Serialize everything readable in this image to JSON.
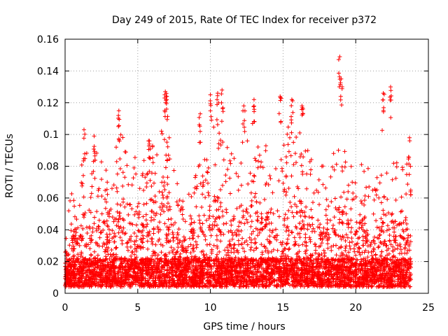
{
  "chart_data": {
    "type": "scatter",
    "title": "Day 249 of 2015, Rate Of TEC Index for receiver p372",
    "xlabel": "GPS time / hours",
    "ylabel": "ROTI / TECUs",
    "xlim": [
      0,
      25
    ],
    "ylim": [
      0,
      0.16
    ],
    "xticks": [
      "0",
      "5",
      "10",
      "15",
      "20",
      "25"
    ],
    "yticks": [
      "0",
      "0.02",
      "0.04",
      "0.06",
      "0.08",
      "0.1",
      "0.12",
      "0.14",
      "0.16"
    ],
    "grid": true,
    "marker": "plus",
    "series_color": "#ff0000",
    "x_coverage": [
      0.0,
      23.8
    ],
    "peaks": [
      {
        "x": 1.3,
        "y": 0.103
      },
      {
        "x": 2.0,
        "y": 0.099
      },
      {
        "x": 3.7,
        "y": 0.115
      },
      {
        "x": 5.8,
        "y": 0.096
      },
      {
        "x": 6.9,
        "y": 0.127
      },
      {
        "x": 7.0,
        "y": 0.124
      },
      {
        "x": 9.3,
        "y": 0.113
      },
      {
        "x": 10.0,
        "y": 0.125
      },
      {
        "x": 10.5,
        "y": 0.126
      },
      {
        "x": 10.8,
        "y": 0.128
      },
      {
        "x": 12.3,
        "y": 0.118
      },
      {
        "x": 13.0,
        "y": 0.122
      },
      {
        "x": 14.8,
        "y": 0.124
      },
      {
        "x": 15.6,
        "y": 0.122
      },
      {
        "x": 16.3,
        "y": 0.118
      },
      {
        "x": 18.9,
        "y": 0.149
      },
      {
        "x": 19.0,
        "y": 0.135
      },
      {
        "x": 21.9,
        "y": 0.126
      },
      {
        "x": 22.4,
        "y": 0.13
      },
      {
        "x": 23.7,
        "y": 0.098
      }
    ],
    "envelope": [
      [
        0.0,
        0.03
      ],
      [
        0.3,
        0.055
      ],
      [
        0.8,
        0.068
      ],
      [
        1.3,
        0.09
      ],
      [
        1.8,
        0.075
      ],
      [
        2.2,
        0.095
      ],
      [
        2.8,
        0.08
      ],
      [
        3.2,
        0.06
      ],
      [
        3.7,
        0.108
      ],
      [
        4.3,
        0.088
      ],
      [
        4.7,
        0.095
      ],
      [
        5.2,
        0.075
      ],
      [
        5.8,
        0.092
      ],
      [
        6.3,
        0.085
      ],
      [
        6.9,
        0.115
      ],
      [
        7.5,
        0.075
      ],
      [
        8.0,
        0.055
      ],
      [
        8.6,
        0.06
      ],
      [
        9.2,
        0.09
      ],
      [
        9.8,
        0.085
      ],
      [
        10.3,
        0.11
      ],
      [
        10.8,
        0.105
      ],
      [
        11.3,
        0.085
      ],
      [
        11.8,
        0.09
      ],
      [
        12.3,
        0.1
      ],
      [
        12.9,
        0.11
      ],
      [
        13.5,
        0.085
      ],
      [
        14.0,
        0.095
      ],
      [
        14.5,
        0.08
      ],
      [
        15.0,
        0.09
      ],
      [
        15.6,
        0.11
      ],
      [
        16.2,
        0.105
      ],
      [
        16.8,
        0.085
      ],
      [
        17.3,
        0.07
      ],
      [
        17.9,
        0.08
      ],
      [
        18.5,
        0.09
      ],
      [
        18.9,
        0.095
      ],
      [
        19.5,
        0.08
      ],
      [
        20.0,
        0.07
      ],
      [
        20.5,
        0.08
      ],
      [
        21.0,
        0.075
      ],
      [
        21.5,
        0.07
      ],
      [
        21.9,
        0.11
      ],
      [
        22.5,
        0.085
      ],
      [
        23.0,
        0.075
      ],
      [
        23.5,
        0.08
      ],
      [
        23.8,
        0.07
      ]
    ]
  }
}
